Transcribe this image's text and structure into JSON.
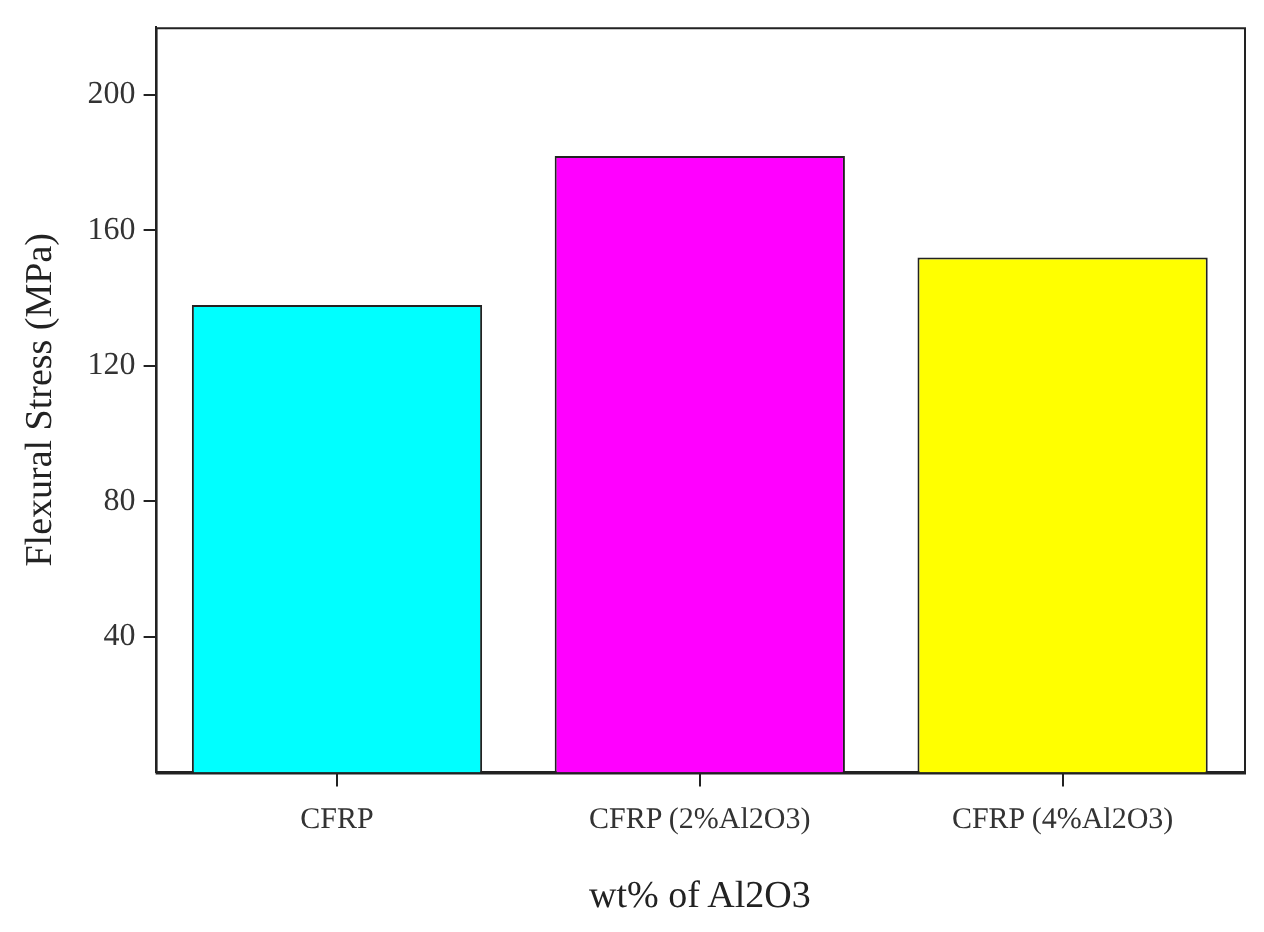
{
  "chart_data": {
    "type": "bar",
    "xlabel": "wt% of Al2O3",
    "ylabel": "Flexural Stress (MPa)",
    "categories": [
      "CFRP",
      "CFRP (2%Al2O3)",
      "CFRP (4%Al2O3)"
    ],
    "values": [
      138,
      182,
      152
    ],
    "colors": [
      "#00ffff",
      "#ff00ff",
      "#ffff00"
    ],
    "ylim": [
      0,
      220
    ],
    "yticks": [
      40,
      80,
      120,
      160,
      200
    ],
    "grid": false,
    "legend": false
  }
}
